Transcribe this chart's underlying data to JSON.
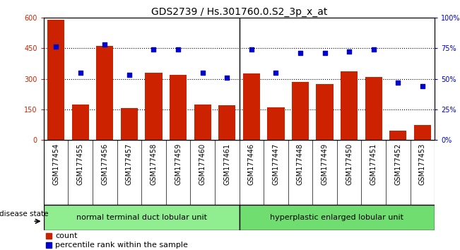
{
  "title": "GDS2739 / Hs.301760.0.S2_3p_x_at",
  "samples": [
    "GSM177454",
    "GSM177455",
    "GSM177456",
    "GSM177457",
    "GSM177458",
    "GSM177459",
    "GSM177460",
    "GSM177461",
    "GSM177446",
    "GSM177447",
    "GSM177448",
    "GSM177449",
    "GSM177450",
    "GSM177451",
    "GSM177452",
    "GSM177453"
  ],
  "counts": [
    590,
    175,
    460,
    155,
    330,
    320,
    175,
    170,
    325,
    160,
    285,
    275,
    335,
    310,
    45,
    75
  ],
  "percentiles": [
    76,
    55,
    78,
    53,
    74,
    74,
    55,
    51,
    74,
    55,
    71,
    71,
    72,
    74,
    47,
    44
  ],
  "group1_label": "normal terminal duct lobular unit",
  "group2_label": "hyperplastic enlarged lobular unit",
  "group1_count": 8,
  "group2_count": 8,
  "bar_color": "#CC2200",
  "dot_color": "#0000CC",
  "ylim_left": [
    0,
    600
  ],
  "ylim_right": [
    0,
    100
  ],
  "yticks_left": [
    0,
    150,
    300,
    450,
    600
  ],
  "yticks_right": [
    0,
    25,
    50,
    75,
    100
  ],
  "ytick_labels_left": [
    "0",
    "150",
    "300",
    "450",
    "600"
  ],
  "ytick_labels_right": [
    "0%",
    "25%",
    "50%",
    "75%",
    "100%"
  ],
  "legend_count_label": "count",
  "legend_pct_label": "percentile rank within the sample",
  "disease_state_label": "disease state",
  "group_bg_color": "#90EE90",
  "xtick_bg_color": "#C8C8C8",
  "title_fontsize": 10,
  "tick_fontsize": 7,
  "label_fontsize": 8,
  "group_label_fontsize": 8
}
